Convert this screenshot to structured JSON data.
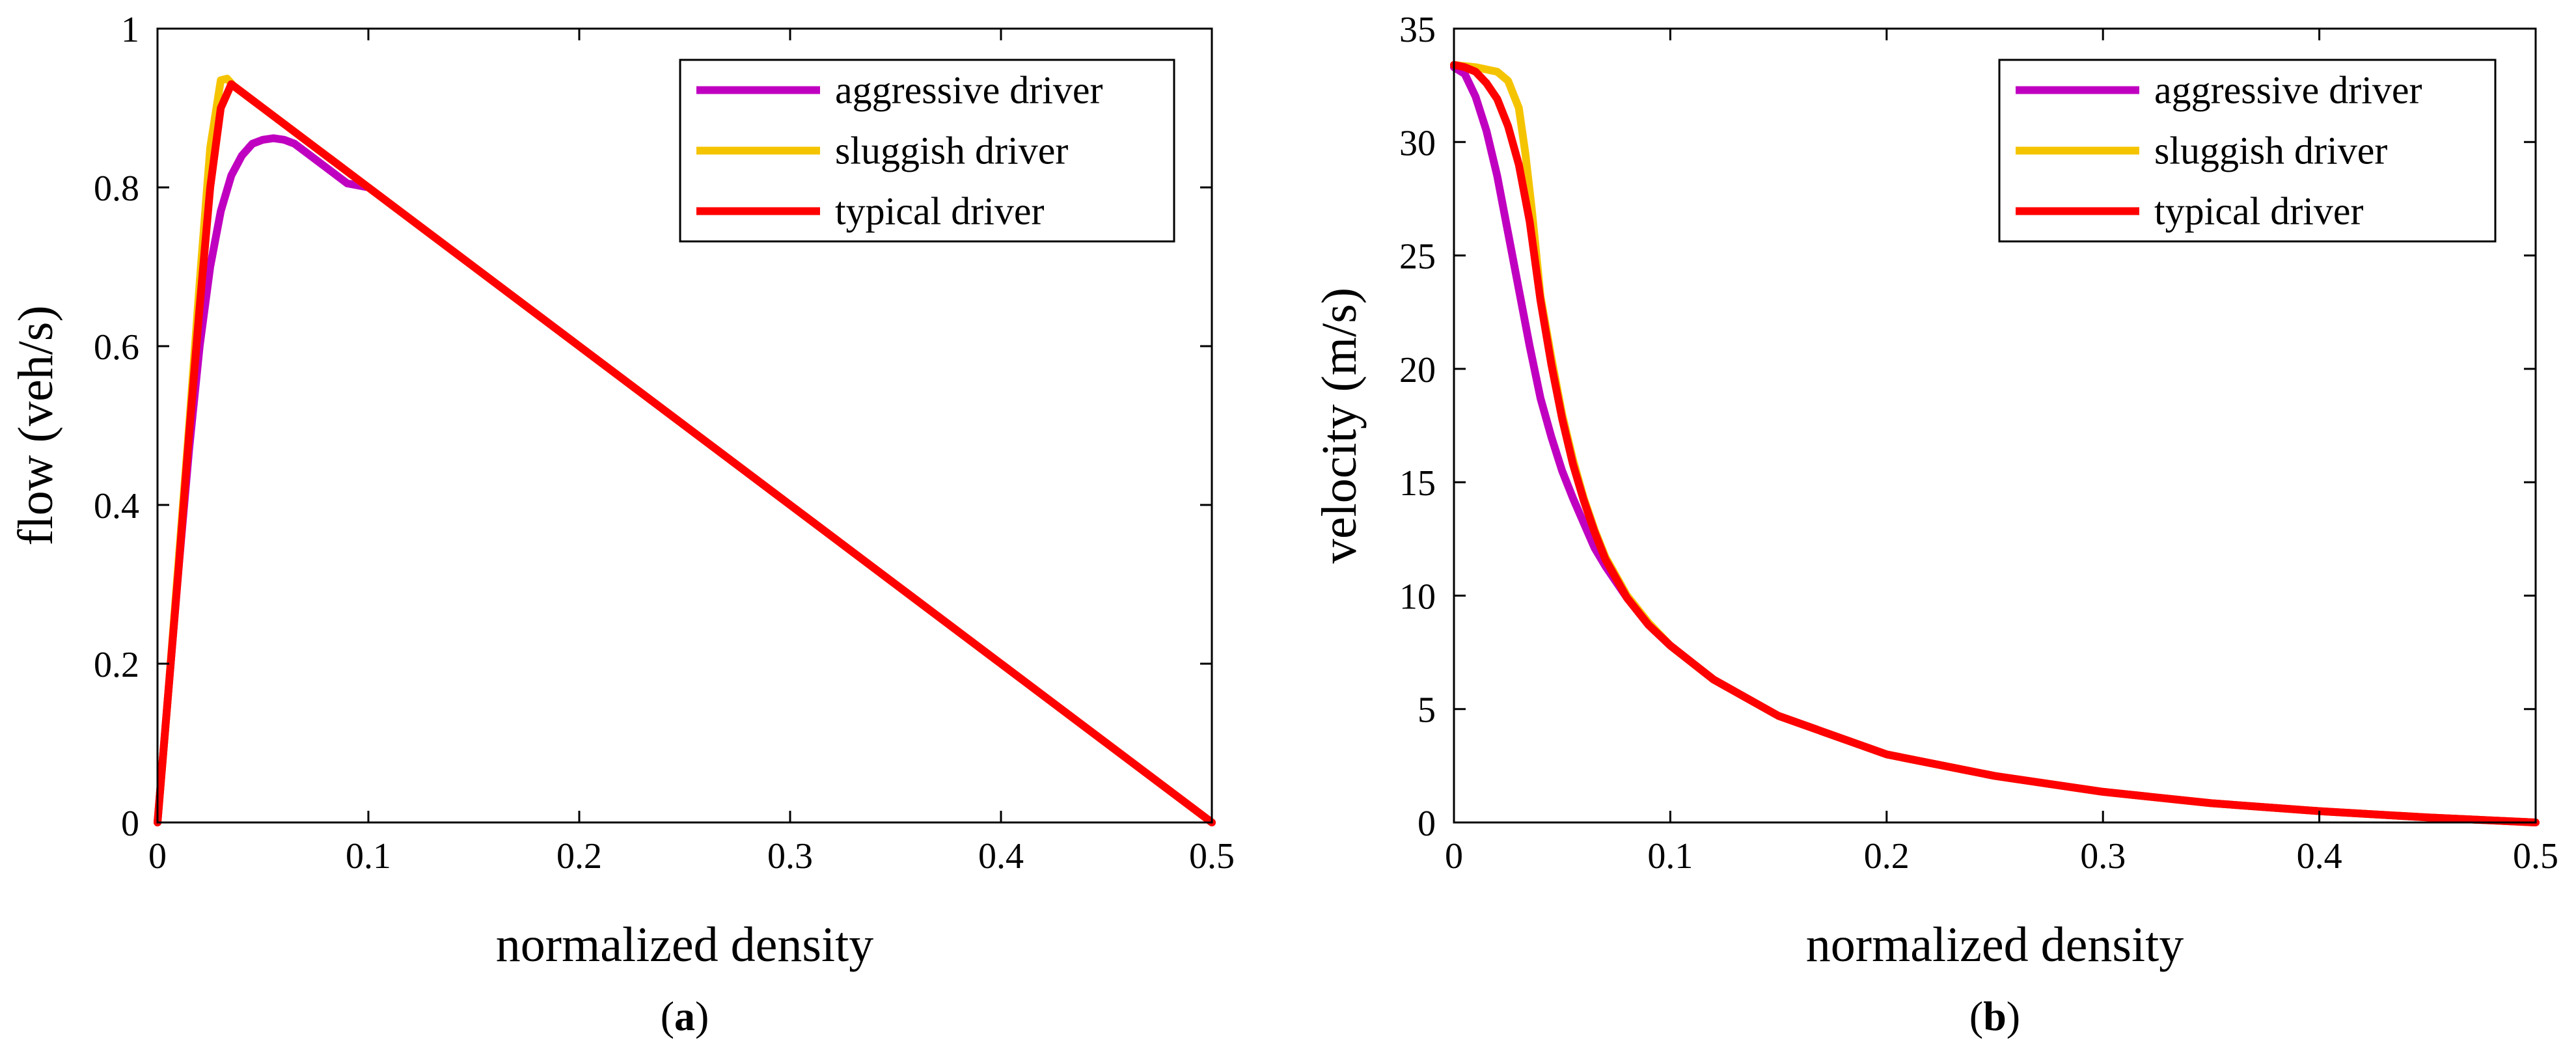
{
  "chart_data": [
    {
      "type": "line",
      "panel_label": "a",
      "title": "",
      "xlabel": "normalized density",
      "ylabel": "flow (veh/s)",
      "xlim": [
        0,
        0.5
      ],
      "ylim": [
        0,
        1
      ],
      "xticks": [
        0,
        0.1,
        0.2,
        0.3,
        0.4,
        0.5
      ],
      "xtick_labels": [
        "0",
        "0.1",
        "0.2",
        "0.3",
        "0.4",
        "0.5"
      ],
      "yticks": [
        0,
        0.2,
        0.4,
        0.6,
        0.8,
        1
      ],
      "ytick_labels": [
        "0",
        "0.2",
        "0.4",
        "0.6",
        "0.8",
        "1"
      ],
      "legend_position": "top-right",
      "series": [
        {
          "name": "aggressive driver",
          "color": "#c000c0",
          "x": [
            0,
            0.005,
            0.01,
            0.015,
            0.02,
            0.025,
            0.03,
            0.035,
            0.04,
            0.045,
            0.05,
            0.055,
            0.06,
            0.065,
            0.07,
            0.08,
            0.09,
            0.1,
            0.15,
            0.2,
            0.25,
            0.3,
            0.35,
            0.4,
            0.45,
            0.5
          ],
          "values": [
            0,
            0.16,
            0.32,
            0.47,
            0.6,
            0.7,
            0.77,
            0.815,
            0.84,
            0.855,
            0.86,
            0.862,
            0.86,
            0.855,
            0.845,
            0.825,
            0.805,
            0.8,
            0.7,
            0.6,
            0.5,
            0.4,
            0.3,
            0.2,
            0.1,
            0
          ]
        },
        {
          "name": "sluggish driver",
          "color": "#f5c400",
          "x": [
            0,
            0.005,
            0.01,
            0.015,
            0.02,
            0.025,
            0.03,
            0.033,
            0.036,
            0.04,
            0.05,
            0.1,
            0.2,
            0.3,
            0.4,
            0.5
          ],
          "values": [
            0,
            0.16,
            0.33,
            0.5,
            0.68,
            0.85,
            0.935,
            0.937,
            0.928,
            0.92,
            0.9,
            0.8,
            0.6,
            0.4,
            0.2,
            0
          ]
        },
        {
          "name": "typical driver",
          "color": "#ff0000",
          "x": [
            0,
            0.005,
            0.01,
            0.015,
            0.02,
            0.025,
            0.03,
            0.035,
            0.04,
            0.05,
            0.1,
            0.2,
            0.3,
            0.4,
            0.5
          ],
          "values": [
            0,
            0.16,
            0.32,
            0.49,
            0.65,
            0.8,
            0.9,
            0.93,
            0.92,
            0.9,
            0.8,
            0.6,
            0.4,
            0.2,
            0
          ]
        }
      ]
    },
    {
      "type": "line",
      "panel_label": "b",
      "title": "",
      "xlabel": "normalized density",
      "ylabel": "velocity (m/s)",
      "xlim": [
        0,
        0.5
      ],
      "ylim": [
        0,
        35
      ],
      "xticks": [
        0,
        0.1,
        0.2,
        0.3,
        0.4,
        0.5
      ],
      "xtick_labels": [
        "0",
        "0.1",
        "0.2",
        "0.3",
        "0.4",
        "0.5"
      ],
      "yticks": [
        0,
        5,
        10,
        15,
        20,
        25,
        30,
        35
      ],
      "ytick_labels": [
        "0",
        "5",
        "10",
        "15",
        "20",
        "25",
        "30",
        "35"
      ],
      "legend_position": "top-right",
      "series": [
        {
          "name": "aggressive driver",
          "color": "#c000c0",
          "x": [
            0,
            0.005,
            0.01,
            0.015,
            0.02,
            0.025,
            0.03,
            0.035,
            0.04,
            0.045,
            0.05,
            0.055,
            0.06,
            0.065,
            0.07,
            0.08,
            0.09,
            0.1,
            0.12,
            0.15,
            0.2,
            0.25,
            0.3,
            0.35,
            0.4,
            0.45,
            0.5
          ],
          "values": [
            33.3,
            33,
            32,
            30.5,
            28.5,
            26,
            23.5,
            21,
            18.7,
            17,
            15.5,
            14.3,
            13.2,
            12.1,
            11.3,
            9.9,
            8.7,
            7.8,
            6.3,
            4.7,
            3,
            2.05,
            1.35,
            0.85,
            0.5,
            0.22,
            0
          ]
        },
        {
          "name": "sluggish driver",
          "color": "#f5c400",
          "x": [
            0,
            0.01,
            0.02,
            0.025,
            0.03,
            0.033,
            0.036,
            0.04,
            0.045,
            0.05,
            0.055,
            0.06,
            0.065,
            0.07,
            0.08,
            0.09,
            0.1,
            0.12,
            0.15,
            0.2,
            0.25,
            0.3,
            0.35,
            0.4,
            0.45,
            0.5
          ],
          "values": [
            33.4,
            33.3,
            33.1,
            32.7,
            31.5,
            29.5,
            27,
            23.2,
            20.5,
            18,
            16,
            14.3,
            12.9,
            11.7,
            10,
            8.8,
            7.8,
            6.3,
            4.7,
            3,
            2.05,
            1.35,
            0.85,
            0.5,
            0.22,
            0
          ]
        },
        {
          "name": "typical driver",
          "color": "#ff0000",
          "x": [
            0,
            0.005,
            0.01,
            0.015,
            0.02,
            0.025,
            0.03,
            0.035,
            0.04,
            0.045,
            0.05,
            0.055,
            0.06,
            0.065,
            0.07,
            0.08,
            0.09,
            0.1,
            0.12,
            0.15,
            0.2,
            0.25,
            0.3,
            0.35,
            0.4,
            0.45,
            0.5
          ],
          "values": [
            33.4,
            33.3,
            33.1,
            32.6,
            31.9,
            30.7,
            29,
            26.5,
            23,
            20.2,
            17.8,
            15.8,
            14.2,
            12.8,
            11.6,
            9.9,
            8.7,
            7.8,
            6.3,
            4.7,
            3,
            2.05,
            1.35,
            0.85,
            0.5,
            0.22,
            0
          ]
        }
      ]
    }
  ]
}
